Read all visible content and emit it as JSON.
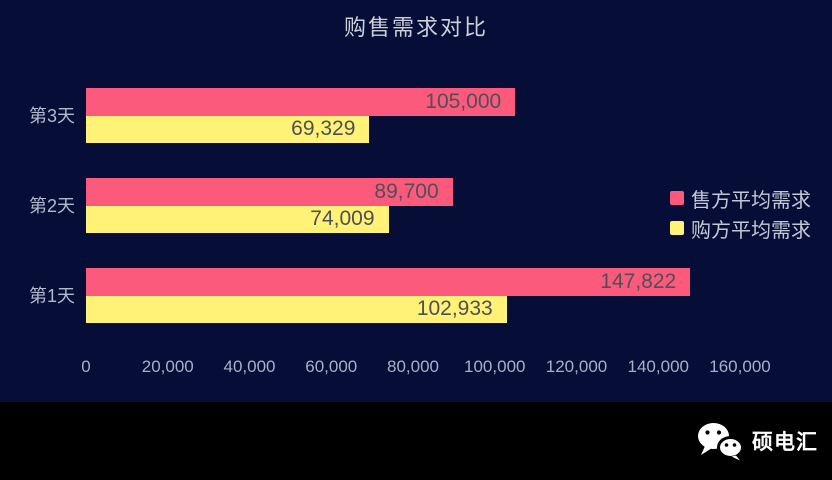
{
  "title": "购售需求对比",
  "colors": {
    "background": "#060D36",
    "footer_background": "#000000",
    "seller_bar": "#FC5A7C",
    "buyer_bar": "#FFF276",
    "title_text": "#CBD0DB",
    "axis_text": "#A8B0C8",
    "category_text": "#B2B9CE",
    "value_text": "#4F4F58",
    "legend_text": "#C2C8D6",
    "watermark_text": "#FFFFFF"
  },
  "chart_data": {
    "type": "bar",
    "orientation": "horizontal",
    "title": "购售需求对比",
    "categories": [
      "第3天",
      "第2天",
      "第1天"
    ],
    "series": [
      {
        "name": "售方平均需求",
        "color": "#FC5A7C",
        "values": [
          105000,
          89700,
          147822
        ],
        "value_labels": [
          "105,000",
          "89,700",
          "147,822"
        ]
      },
      {
        "name": "购方平均需求",
        "color": "#FFF276",
        "values": [
          69329,
          74009,
          102933
        ],
        "value_labels": [
          "69,329",
          "74,009",
          "102,933"
        ]
      }
    ],
    "xlim": [
      0,
      160000
    ],
    "xticks": [
      0,
      20000,
      40000,
      60000,
      80000,
      100000,
      120000,
      140000,
      160000
    ],
    "xtick_labels": [
      "0",
      "20,000",
      "40,000",
      "60,000",
      "80,000",
      "100,000",
      "120,000",
      "140,000",
      "160,000"
    ],
    "legend_position": "right",
    "grid": false,
    "value_labels_inside": true
  },
  "legend": {
    "items": [
      {
        "label": "售方平均需求",
        "color": "#FC5A7C"
      },
      {
        "label": "购方平均需求",
        "color": "#FFF276"
      }
    ]
  },
  "watermark": {
    "icon": "wechat-icon",
    "text": "硕电汇"
  }
}
